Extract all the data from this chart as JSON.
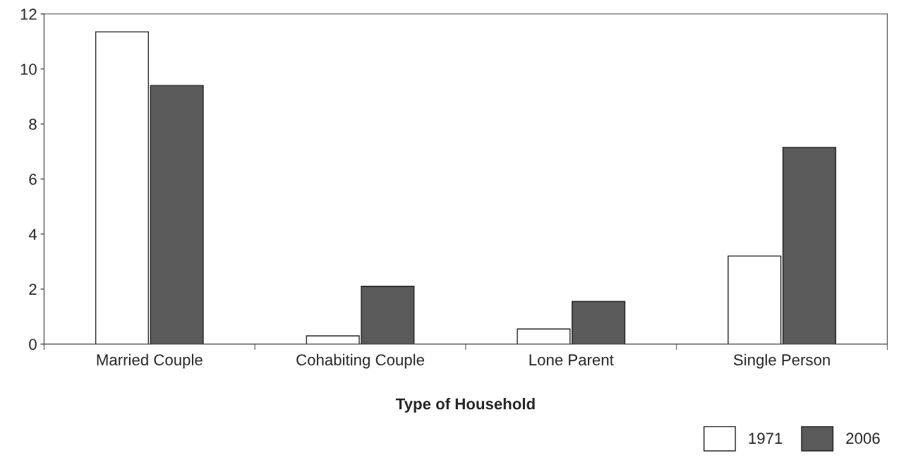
{
  "chart_data": {
    "type": "bar",
    "xlabel": "Type of Household",
    "categories": [
      "Married Couple",
      "Cohabiting Couple",
      "Lone Parent",
      "Single Person"
    ],
    "series": [
      {
        "name": "1971",
        "color": "#ffffff",
        "values": [
          11.35,
          0.3,
          0.55,
          3.2
        ]
      },
      {
        "name": "2006",
        "color": "#5a5a5a",
        "values": [
          9.4,
          2.1,
          1.55,
          7.15
        ]
      }
    ],
    "ylim": [
      0,
      12
    ],
    "yticks": [
      0,
      2,
      4,
      6,
      8,
      10,
      12
    ],
    "grid": false,
    "legend": "bottom right"
  }
}
